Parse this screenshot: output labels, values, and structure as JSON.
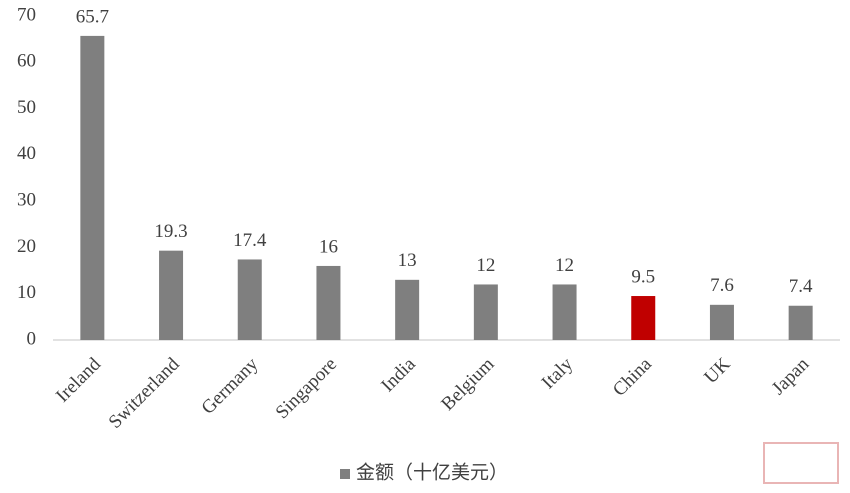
{
  "chart_data": {
    "type": "bar",
    "categories": [
      "Ireland",
      "Switzerland",
      "Germany",
      "Singapore",
      "India",
      "Belgium",
      "Italy",
      "China",
      "UK",
      "Japan"
    ],
    "series": [
      {
        "name": "金额（十亿美元）",
        "color": "#7f7f7f",
        "values": [
          65.7,
          19.3,
          17.4,
          16,
          13,
          12,
          12,
          9.5,
          7.6,
          7.4
        ],
        "bar_colors": [
          "#7f7f7f",
          "#7f7f7f",
          "#7f7f7f",
          "#7f7f7f",
          "#7f7f7f",
          "#7f7f7f",
          "#7f7f7f",
          "#c00000",
          "#7f7f7f",
          "#7f7f7f"
        ]
      }
    ],
    "ylim": [
      0,
      70
    ],
    "yticks": [
      0,
      10,
      20,
      30,
      40,
      50,
      60,
      70
    ],
    "grid": false,
    "legend": "bottom"
  }
}
